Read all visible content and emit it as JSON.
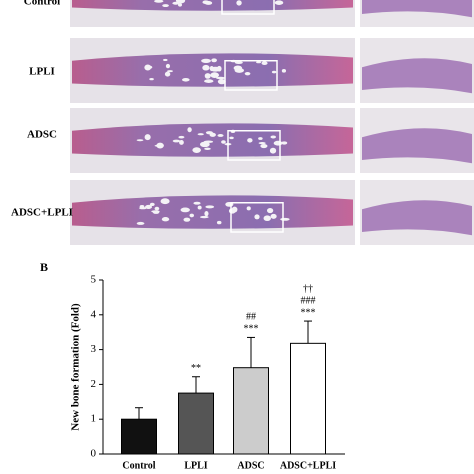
{
  "figure": {
    "row_labels": [
      "Control",
      "LPLI",
      "ADSC",
      "ADSC+LPLI"
    ],
    "panel_label": "B"
  },
  "chart_data": {
    "type": "bar",
    "y_label": "New bone formation (Fold)",
    "categories": [
      "Control",
      "LPLI",
      "ADSC",
      "ADSC+LPLI"
    ],
    "values": [
      1.0,
      1.75,
      2.48,
      3.18
    ],
    "errors": [
      0.33,
      0.47,
      0.87,
      0.64
    ],
    "colors": [
      "#111111",
      "#555555",
      "#cccccc",
      "#ffffff"
    ],
    "significance": [
      [],
      [
        "**"
      ],
      [
        "##",
        "***"
      ],
      [
        "††",
        "###",
        "***"
      ]
    ],
    "ylim": [
      0,
      5
    ],
    "yticks": [
      0,
      1,
      2,
      3,
      4,
      5
    ]
  }
}
